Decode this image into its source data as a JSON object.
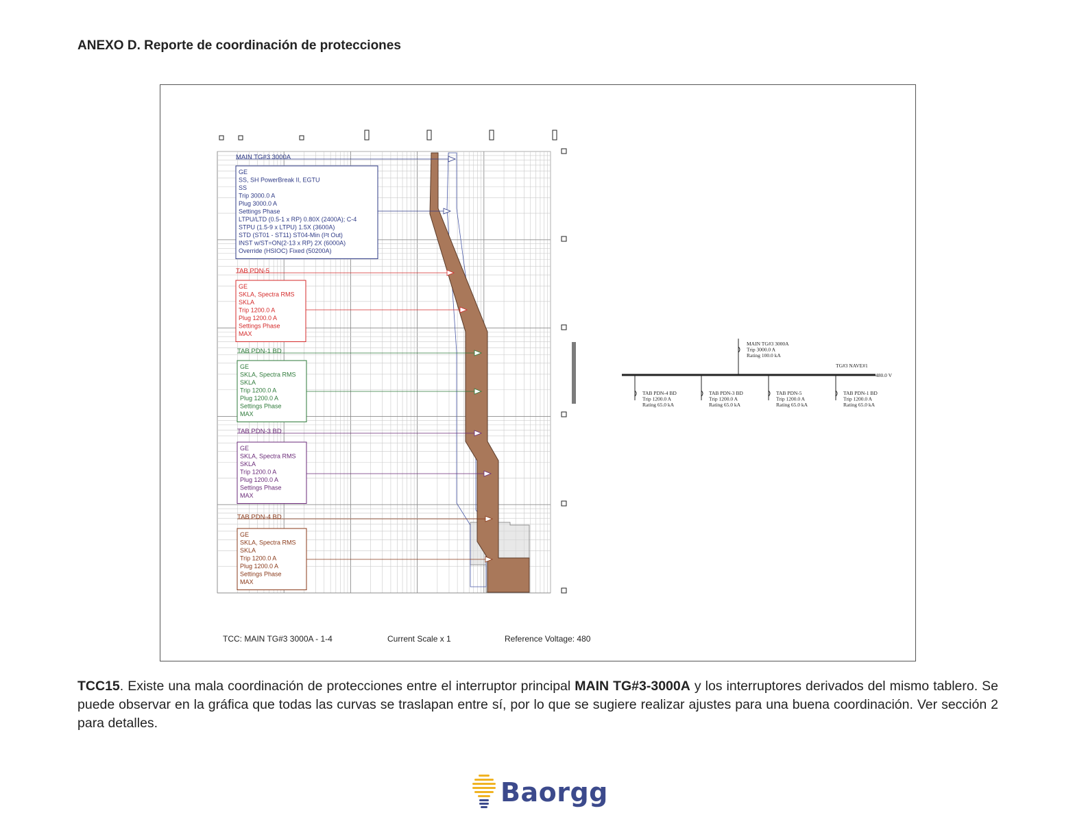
{
  "heading": "ANEXO D. Reporte de coordinación de protecciones",
  "tcc": {
    "footer": {
      "tcc_label": "TCC:  MAIN TG#3 3000A - 1-4",
      "current_scale": "Current Scale  x 1",
      "reference_voltage": "Reference Voltage: 480"
    },
    "devices": [
      {
        "id": "main",
        "color": "#2e3a86",
        "name": "MAIN TG#3 3000A",
        "lines": [
          "GE",
          "SS, SH PowerBreak II, EGTU",
          "SS",
          "Trip 3000.0 A",
          "Plug 3000.0 A",
          "Settings Phase",
          "  LTPU/LTD (0.5-1 x RP) 0.80X (2400A); C-4",
          "  STPU (1.5-9 x LTPU) 1.5X (3600A)",
          "  STD (ST01 - ST11) ST04-Min (I^2t Out)",
          "  INST w/ST=ON(2-13 x RP) 2X (6000A)",
          "  Override (HSIOC) Fixed (50200A)"
        ]
      },
      {
        "id": "pdn5",
        "color": "#d42a2a",
        "name": "TAB PDN-5",
        "lines": [
          "GE",
          "SKLA, Spectra RMS",
          "SKLA",
          "Trip 1200.0 A",
          "Plug 1200.0 A",
          "Settings Phase",
          "  MAX"
        ]
      },
      {
        "id": "pdn1",
        "color": "#2e7a3a",
        "name": "TAB PDN-1 BD",
        "lines": [
          "GE",
          "SKLA, Spectra RMS",
          "SKLA",
          "Trip 1200.0 A",
          "Plug 1200.0 A",
          "Settings Phase",
          "  MAX"
        ]
      },
      {
        "id": "pdn3",
        "color": "#6a2a78",
        "name": "TAB PDN-3 BD",
        "lines": [
          "GE",
          "SKLA, Spectra RMS",
          "SKLA",
          "Trip 1200.0 A",
          "Plug 1200.0 A",
          "Settings Phase",
          "  MAX"
        ]
      },
      {
        "id": "pdn4",
        "color": "#8a3a1a",
        "name": "TAB PDN-4 BD",
        "lines": [
          "GE",
          "SKLA, Spectra RMS",
          "SKLA",
          "Trip 1200.0 A",
          "Plug 1200.0 A",
          "Settings Phase",
          "  MAX"
        ]
      }
    ],
    "oneline": {
      "main": {
        "name": "MAIN TG#3 3000A",
        "trip": "Trip 3000.0 A",
        "rating": "Rating 100.0 kA"
      },
      "bus": {
        "name": "TG#3 NAVE#1",
        "voltage": "480.0 V"
      },
      "branches": [
        {
          "name": "TAB PDN-4 BD",
          "trip": "Trip 1200.0 A",
          "rating": "Rating 65.0 kA"
        },
        {
          "name": "TAB PDN-3 BD",
          "trip": "Trip 1200.0 A",
          "rating": "Rating 65.0 kA"
        },
        {
          "name": "TAB PDN-5",
          "trip": "Trip 1200.0 A",
          "rating": "Rating 65.0 kA"
        },
        {
          "name": "TAB PDN-1 BD",
          "trip": "Trip 1200.0 A",
          "rating": "Rating 65.0 kA"
        }
      ]
    }
  },
  "caption": {
    "lead": "TCC15",
    "part1": ". Existe una mala coordinación de protecciones entre el interruptor principal ",
    "device": "MAIN TG#3-3000A",
    "part2": " y los interruptores derivados del mismo tablero. Se puede observar en la gráfica que todas las curvas se traslapan entre sí, por lo que se sugiere realizar ajustes para una buena coordinación. Ver sección 2 para detalles."
  },
  "logo": {
    "text": "Baorgg",
    "color": "#3c4a8c",
    "accent": "#f0b323"
  }
}
